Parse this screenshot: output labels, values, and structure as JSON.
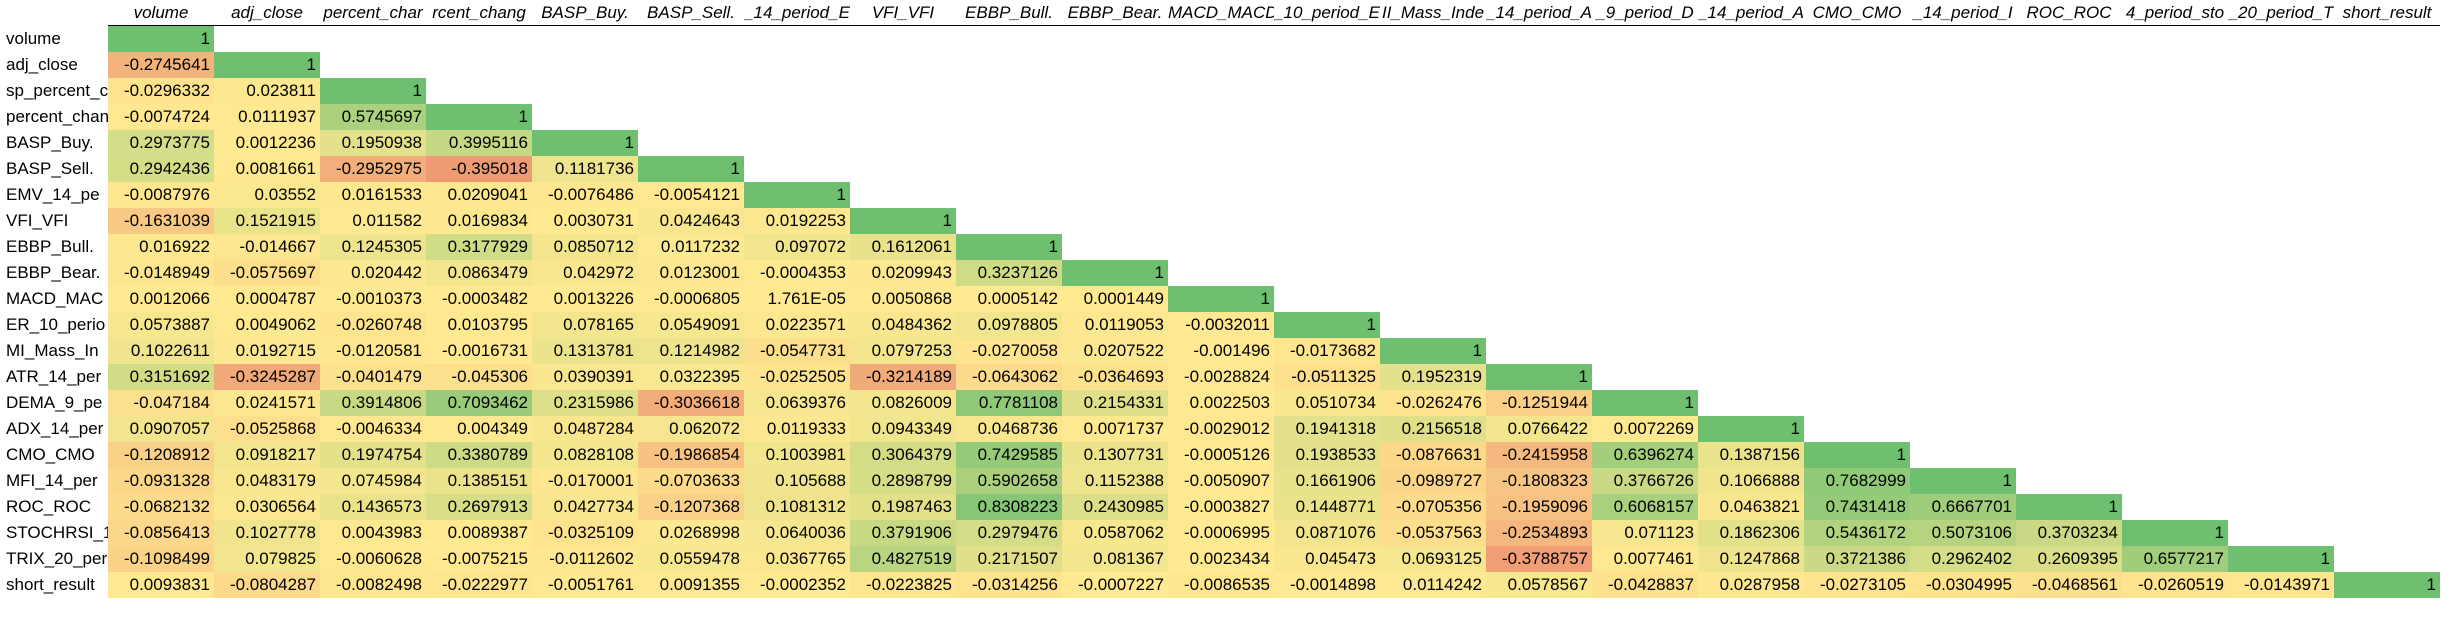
{
  "sheet": {
    "columns": [
      "volume",
      "adj_close",
      "percent_char",
      "rcent_chang",
      "BASP_Buy.",
      "BASP_Sell.",
      "_14_period_E",
      "VFI_VFI",
      "EBBP_Bull.",
      "EBBP_Bear.",
      "MACD_MACD",
      "_10_period_E",
      "II_Mass_Inde",
      "_14_period_A",
      "_9_period_D",
      "_14_period_A",
      "CMO_CMO",
      "_14_period_I",
      "ROC_ROC",
      "4_period_sto",
      "_20_period_T",
      "short_result"
    ],
    "rows": [
      {
        "label": "volume",
        "values": [
          "1"
        ]
      },
      {
        "label": "adj_close",
        "values": [
          "-0.2745641",
          "1"
        ]
      },
      {
        "label": "sp_percent_c",
        "values": [
          "-0.0296332",
          "0.023811",
          "1"
        ]
      },
      {
        "label": "percent_chan",
        "values": [
          "-0.0074724",
          "0.0111937",
          "0.5745697",
          "1"
        ]
      },
      {
        "label": "BASP_Buy.",
        "values": [
          "0.2973775",
          "0.0012236",
          "0.1950938",
          "0.3995116",
          "1"
        ]
      },
      {
        "label": "BASP_Sell.",
        "values": [
          "0.2942436",
          "0.0081661",
          "-0.2952975",
          "-0.395018",
          "0.1181736",
          "1"
        ]
      },
      {
        "label": "EMV_14_pe",
        "values": [
          "-0.0087976",
          "0.03552",
          "0.0161533",
          "0.0209041",
          "-0.0076486",
          "-0.0054121",
          "1"
        ]
      },
      {
        "label": "VFI_VFI",
        "values": [
          "-0.1631039",
          "0.1521915",
          "0.011582",
          "0.0169834",
          "0.0030731",
          "0.0424643",
          "0.0192253",
          "1"
        ]
      },
      {
        "label": "EBBP_Bull.",
        "values": [
          "0.016922",
          "-0.014667",
          "0.1245305",
          "0.3177929",
          "0.0850712",
          "0.0117232",
          "0.097072",
          "0.1612061",
          "1"
        ]
      },
      {
        "label": "EBBP_Bear.",
        "values": [
          "-0.0148949",
          "-0.0575697",
          "0.020442",
          "0.0863479",
          "0.042972",
          "0.0123001",
          "-0.0004353",
          "0.0209943",
          "0.3237126",
          "1"
        ]
      },
      {
        "label": "MACD_MAC",
        "values": [
          "0.0012066",
          "0.0004787",
          "-0.0010373",
          "-0.0003482",
          "0.0013226",
          "-0.0006805",
          "1.761E-05",
          "0.0050868",
          "0.0005142",
          "0.0001449",
          "1"
        ]
      },
      {
        "label": "ER_10_perio",
        "values": [
          "0.0573887",
          "0.0049062",
          "-0.0260748",
          "0.0103795",
          "0.078165",
          "0.0549091",
          "0.0223571",
          "0.0484362",
          "0.0978805",
          "0.0119053",
          "-0.0032011",
          "1"
        ]
      },
      {
        "label": "MI_Mass_In",
        "values": [
          "0.1022611",
          "0.0192715",
          "-0.0120581",
          "-0.0016731",
          "0.1313781",
          "0.1214982",
          "-0.0547731",
          "0.0797253",
          "-0.0270058",
          "0.0207522",
          "-0.001496",
          "-0.0173682",
          "1"
        ]
      },
      {
        "label": "ATR_14_per",
        "values": [
          "0.3151692",
          "-0.3245287",
          "-0.0401479",
          "-0.045306",
          "0.0390391",
          "0.0322395",
          "-0.0252505",
          "-0.3214189",
          "-0.0643062",
          "-0.0364693",
          "-0.0028824",
          "-0.0511325",
          "0.1952319",
          "1"
        ]
      },
      {
        "label": "DEMA_9_pe",
        "values": [
          "-0.047184",
          "0.0241571",
          "0.3914806",
          "0.7093462",
          "0.2315986",
          "-0.3036618",
          "0.0639376",
          "0.0826009",
          "0.7781108",
          "0.2154331",
          "0.0022503",
          "0.0510734",
          "-0.0262476",
          "-0.1251944",
          "1"
        ]
      },
      {
        "label": "ADX_14_per",
        "values": [
          "0.0907057",
          "-0.0525868",
          "-0.0046334",
          "0.004349",
          "0.0487284",
          "0.062072",
          "0.0119333",
          "0.0943349",
          "0.0468736",
          "0.0071737",
          "-0.0029012",
          "0.1941318",
          "0.2156518",
          "0.0766422",
          "0.0072269",
          "1"
        ]
      },
      {
        "label": "CMO_CMO",
        "values": [
          "-0.1208912",
          "0.0918217",
          "0.1974754",
          "0.3380789",
          "0.0828108",
          "-0.1986854",
          "0.1003981",
          "0.3064379",
          "0.7429585",
          "0.1307731",
          "-0.0005126",
          "0.1938533",
          "-0.0876631",
          "-0.2415958",
          "0.6396274",
          "0.1387156",
          "1"
        ]
      },
      {
        "label": "MFI_14_per",
        "values": [
          "-0.0931328",
          "0.0483179",
          "0.0745984",
          "0.1385151",
          "-0.0170001",
          "-0.0703633",
          "0.105688",
          "0.2898799",
          "0.5902658",
          "0.1152388",
          "-0.0050907",
          "0.1661906",
          "-0.0989727",
          "-0.1808323",
          "0.3766726",
          "0.1066888",
          "0.7682999",
          "1"
        ]
      },
      {
        "label": "ROC_ROC",
        "values": [
          "-0.0682132",
          "0.0306564",
          "0.1436573",
          "0.2697913",
          "0.0427734",
          "-0.1207368",
          "0.1081312",
          "0.1987463",
          "0.8308223",
          "0.2430985",
          "-0.0003827",
          "0.1448771",
          "-0.0705356",
          "-0.1959096",
          "0.6068157",
          "0.0463821",
          "0.7431418",
          "0.6667701",
          "1"
        ]
      },
      {
        "label": "STOCHRSI_1",
        "values": [
          "-0.0856413",
          "0.1027778",
          "0.0043983",
          "0.0089387",
          "-0.0325109",
          "0.0268998",
          "0.0640036",
          "0.3791906",
          "0.2979476",
          "0.0587062",
          "-0.0006995",
          "0.0871076",
          "-0.0537563",
          "-0.2534893",
          "0.071123",
          "0.1862306",
          "0.5436172",
          "0.5073106",
          "0.3703234",
          "1"
        ]
      },
      {
        "label": "TRIX_20_per",
        "values": [
          "-0.1098499",
          "0.079825",
          "-0.0060628",
          "-0.0075215",
          "-0.0112602",
          "0.0559478",
          "0.0367765",
          "0.4827519",
          "0.2171507",
          "0.081367",
          "0.0023434",
          "0.045473",
          "0.0693125",
          "-0.3788757",
          "0.0077461",
          "0.1247868",
          "0.3721386",
          "0.2962402",
          "0.2609395",
          "0.6577217",
          "1"
        ]
      },
      {
        "label": "short_result",
        "values": [
          "0.0093831",
          "-0.0804287",
          "-0.0082498",
          "-0.0222977",
          "-0.0051761",
          "0.0091355",
          "-0.0002352",
          "-0.0223825",
          "-0.0314256",
          "-0.0007227",
          "-0.0086535",
          "-0.0014898",
          "0.0114242",
          "0.0578567",
          "-0.0428837",
          "0.0287958",
          "-0.0273105",
          "-0.0304995",
          "-0.0468561",
          "-0.0260519",
          "-0.0143971",
          "1"
        ]
      }
    ]
  },
  "colors": {
    "low": "#ee9a73",
    "mid": "#ffe991",
    "high": "#6fbf70",
    "divider": "#000000"
  }
}
